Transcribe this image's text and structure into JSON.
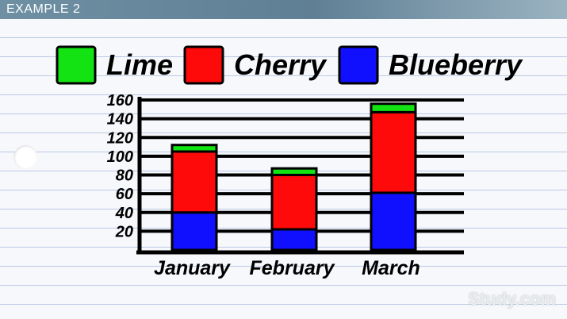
{
  "header": {
    "title": "EXAMPLE 2"
  },
  "watermark": {
    "text": "Study.com"
  },
  "chart_data": {
    "type": "bar",
    "stacked": true,
    "title": "",
    "xlabel": "",
    "ylabel": "",
    "ylim": [
      0,
      160
    ],
    "yticks": [
      20,
      40,
      60,
      80,
      100,
      120,
      140,
      160
    ],
    "categories": [
      "January",
      "February",
      "March"
    ],
    "series": [
      {
        "name": "Blueberry",
        "color": "#1010ff",
        "values": [
          40,
          22,
          61
        ]
      },
      {
        "name": "Cherry",
        "color": "#ff0a0a",
        "values": [
          65,
          58,
          86
        ]
      },
      {
        "name": "Lime",
        "color": "#13e313",
        "values": [
          7,
          7,
          9
        ]
      }
    ],
    "legend": {
      "position": "top",
      "order": [
        "Lime",
        "Cherry",
        "Blueberry"
      ]
    },
    "grid": true
  }
}
